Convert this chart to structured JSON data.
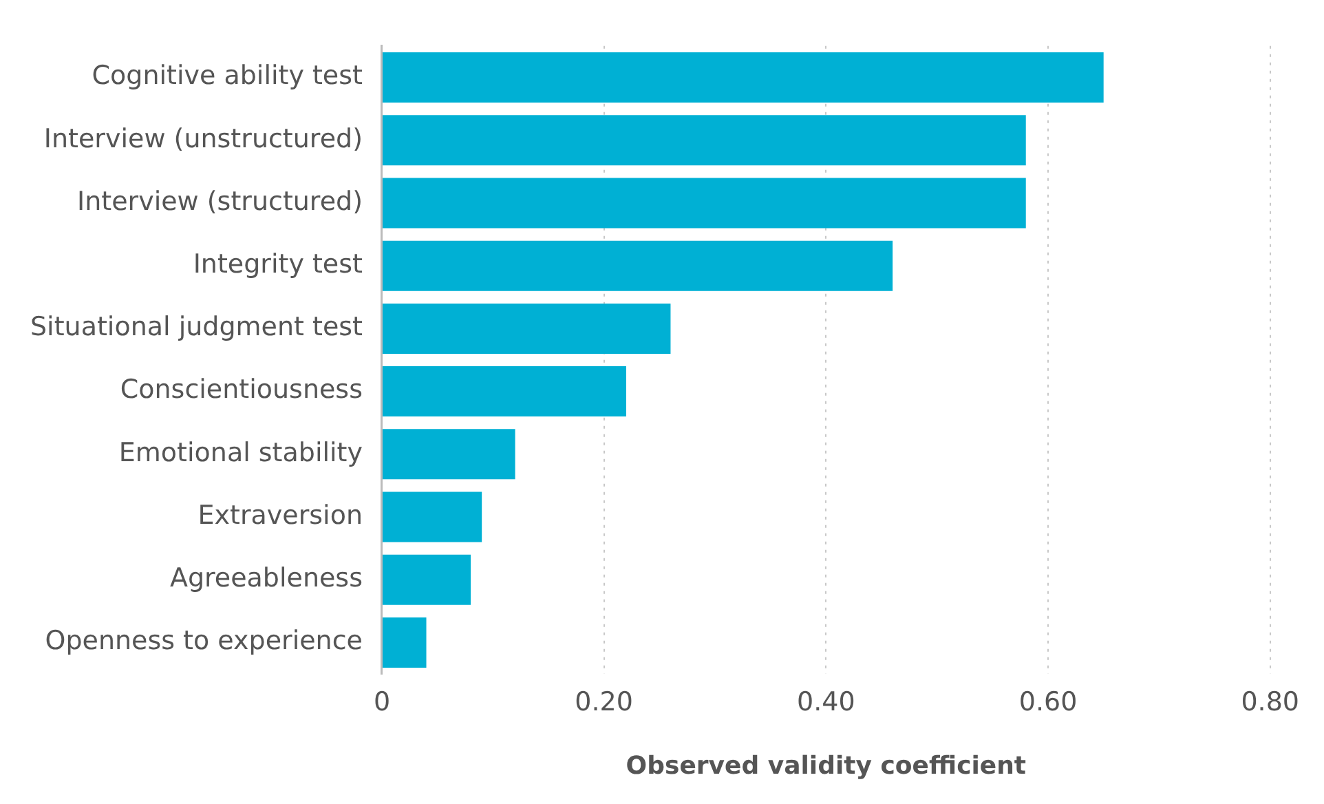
{
  "chart_data": {
    "type": "bar",
    "orientation": "horizontal",
    "xlabel": "Observed validity coefficient",
    "categories": [
      "Cognitive ability test",
      "Interview (unstructured)",
      "Interview (structured)",
      "Integrity test",
      "Situational judgment test",
      "Conscientiousness",
      "Emotional stability",
      "Extraversion",
      "Agreeableness",
      "Openness to experience"
    ],
    "values": [
      0.65,
      0.58,
      0.58,
      0.46,
      0.26,
      0.22,
      0.12,
      0.09,
      0.08,
      0.04
    ],
    "color": "#00b0d4",
    "xlim": [
      0,
      0.8
    ],
    "xticks": [
      0,
      {
        "value": 0.2,
        "label": "0.20"
      },
      {
        "value": 0.4,
        "label": "0.40"
      },
      {
        "value": 0.6,
        "label": "0.60"
      },
      {
        "value": 0.8,
        "label": "0.80"
      }
    ],
    "grid": "x",
    "legend": false
  }
}
